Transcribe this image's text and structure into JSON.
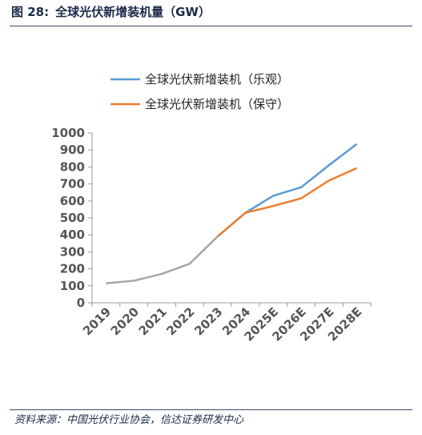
{
  "figure": {
    "label": "图 28:",
    "title": "全球光伏新增装机量（GW）",
    "source": "资料来源：中国光伏行业协会，信达证券研发中心"
  },
  "colors": {
    "optimistic": "#5b9bd5",
    "conservative": "#ed7d31",
    "history": "#a5a5a5",
    "axis": "#999999"
  },
  "chart_data": {
    "type": "line",
    "categories": [
      "2019",
      "2020",
      "2021",
      "2022",
      "2023",
      "2024",
      "2025E",
      "2026E",
      "2027E",
      "2028E"
    ],
    "ylim": [
      0,
      1000
    ],
    "yticks": [
      0,
      100,
      200,
      300,
      400,
      500,
      600,
      700,
      800,
      900,
      1000
    ],
    "grid": false,
    "legend_position": "top",
    "series": [
      {
        "name": "全球光伏新增装机（乐观）",
        "color_key": "optimistic",
        "values": [
          115,
          130,
          170,
          230,
          390,
          530,
          630,
          680,
          810,
          935
        ]
      },
      {
        "name": "全球光伏新增装机（保守）",
        "color_key": "conservative",
        "values": [
          115,
          130,
          170,
          230,
          390,
          530,
          570,
          615,
          720,
          793
        ]
      }
    ],
    "history_points": 6
  }
}
